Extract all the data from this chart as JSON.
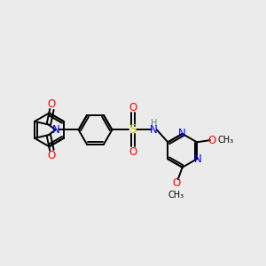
{
  "background_color": "#ebebeb",
  "bond_color": "#000000",
  "N_color": "#0000ff",
  "O_color": "#ff0000",
  "S_color": "#cccc00",
  "H_color": "#558888",
  "line_width": 1.4,
  "font_size": 8.5,
  "figsize": [
    3.0,
    3.0
  ],
  "dpi": 100,
  "xlim": [
    -3.8,
    2.8
  ],
  "ylim": [
    -1.8,
    1.8
  ]
}
